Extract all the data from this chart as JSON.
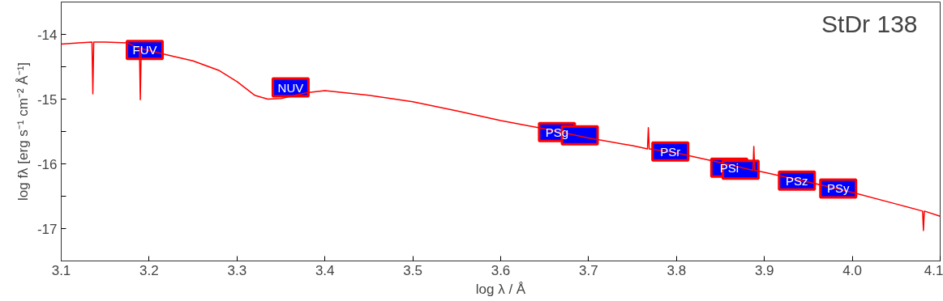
{
  "chart_data": {
    "type": "line",
    "title": "StDr 138",
    "xlabel": "log λ / Å",
    "ylabel": "log fλ [erg s⁻¹ cm⁻² Å⁻¹]",
    "xlim": [
      3.1,
      4.1
    ],
    "ylim": [
      -17.5,
      -13.5
    ],
    "xticks": [
      3.1,
      {
        "value": 3.2,
        "label": "3.2"
      },
      3.3,
      3.4,
      3.5,
      3.6,
      3.7,
      3.8,
      3.9,
      {
        "value": 4.0,
        "label": "4.0"
      },
      4.1
    ],
    "yticks": [
      {
        "value": -14.5,
        "label": null
      },
      -14,
      {
        "value": -15.5,
        "label": null
      },
      -15,
      {
        "value": -16.5,
        "label": null
      },
      -16,
      -17
    ],
    "grid": false,
    "series": [
      {
        "color": "#ff0000",
        "marker": "none",
        "line_style": "solid",
        "x": [
          3.1,
          3.12,
          3.135,
          3.136,
          3.137,
          3.15,
          3.175,
          3.189,
          3.19,
          3.191,
          3.2,
          3.225,
          3.25,
          3.28,
          3.3,
          3.32,
          3.335,
          3.35,
          3.38,
          3.4,
          3.45,
          3.5,
          3.55,
          3.6,
          3.65,
          3.7,
          3.75,
          3.767,
          3.768,
          3.769,
          3.8,
          3.85,
          3.887,
          3.888,
          3.889,
          3.9,
          3.95,
          4.0,
          4.05,
          4.08,
          4.081,
          4.082,
          4.1
        ],
        "values": [
          -14.15,
          -14.13,
          -14.12,
          -14.92,
          -14.12,
          -14.12,
          -14.13,
          -14.22,
          -15.01,
          -14.22,
          -14.25,
          -14.33,
          -14.41,
          -14.56,
          -14.73,
          -14.94,
          -15.0,
          -14.99,
          -14.9,
          -14.87,
          -14.94,
          -15.04,
          -15.18,
          -15.33,
          -15.46,
          -15.6,
          -15.72,
          -15.77,
          -15.44,
          -15.77,
          -15.83,
          -15.98,
          -16.1,
          -15.73,
          -16.1,
          -16.13,
          -16.28,
          -16.44,
          -16.62,
          -16.73,
          -17.03,
          -16.73,
          -16.81
        ]
      },
      {
        "type": "scatter",
        "color": "#0000ff",
        "marker": "square",
        "x": [
          3.195,
          3.361,
          3.664,
          3.69,
          3.793,
          3.86,
          3.873,
          3.937,
          3.984
        ],
        "values": [
          -14.24,
          -14.82,
          -15.51,
          -15.56,
          -15.81,
          -16.06,
          -16.09,
          -16.26,
          -16.38
        ]
      }
    ],
    "annotations": [
      {
        "text": "FUV",
        "x": 3.195,
        "y": -14.24
      },
      {
        "text": "NUV",
        "x": 3.361,
        "y": -14.82
      },
      {
        "text": "PSg",
        "x": 3.664,
        "y": -15.51
      },
      {
        "text": "PSr",
        "x": 3.793,
        "y": -15.81
      },
      {
        "text": "PSi",
        "x": 3.86,
        "y": -16.06
      },
      {
        "text": "PSz",
        "x": 3.937,
        "y": -16.26
      },
      {
        "text": "PSy",
        "x": 3.984,
        "y": -16.38
      }
    ]
  }
}
